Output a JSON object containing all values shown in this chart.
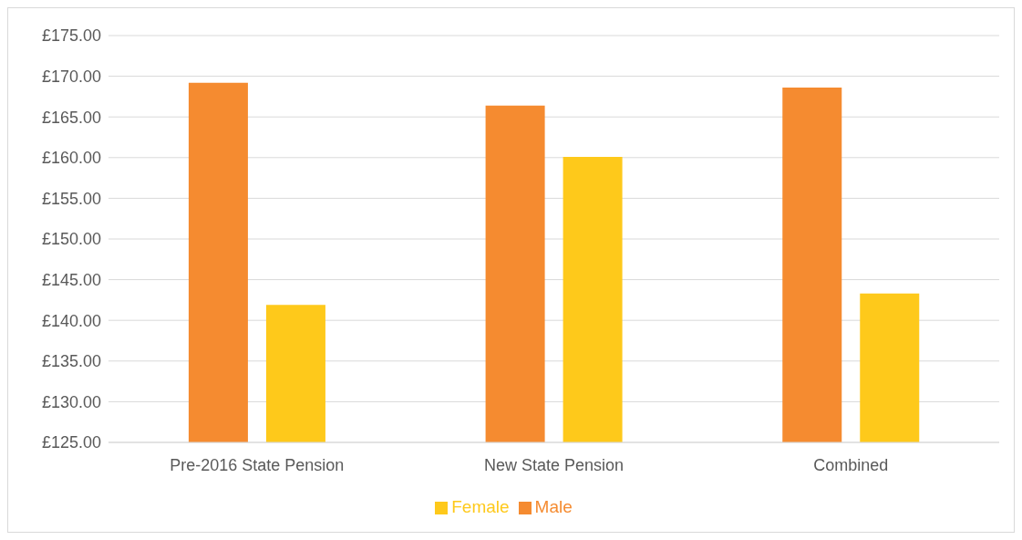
{
  "chart_data": {
    "type": "bar",
    "categories": [
      "Pre-2016 State Pension",
      "New State Pension",
      "Combined"
    ],
    "series": [
      {
        "name": "Male",
        "color": "#f58b30",
        "values": [
          169.2,
          166.4,
          168.6
        ]
      },
      {
        "name": "Female",
        "color": "#fec91b",
        "values": [
          141.9,
          160.1,
          143.3
        ]
      }
    ],
    "ylim": [
      125,
      175
    ],
    "yticks": [
      {
        "value": 125,
        "label": "£125.00"
      },
      {
        "value": 130,
        "label": "£130.00"
      },
      {
        "value": 135,
        "label": "£135.00"
      },
      {
        "value": 140,
        "label": "£140.00"
      },
      {
        "value": 145,
        "label": "£145.00"
      },
      {
        "value": 150,
        "label": "£150.00"
      },
      {
        "value": 155,
        "label": "£155.00"
      },
      {
        "value": 160,
        "label": "£160.00"
      },
      {
        "value": 165,
        "label": "£165.00"
      },
      {
        "value": 170,
        "label": "£170.00"
      },
      {
        "value": 175,
        "label": "£175.00"
      }
    ],
    "grid": "y",
    "legend": "bottom"
  }
}
